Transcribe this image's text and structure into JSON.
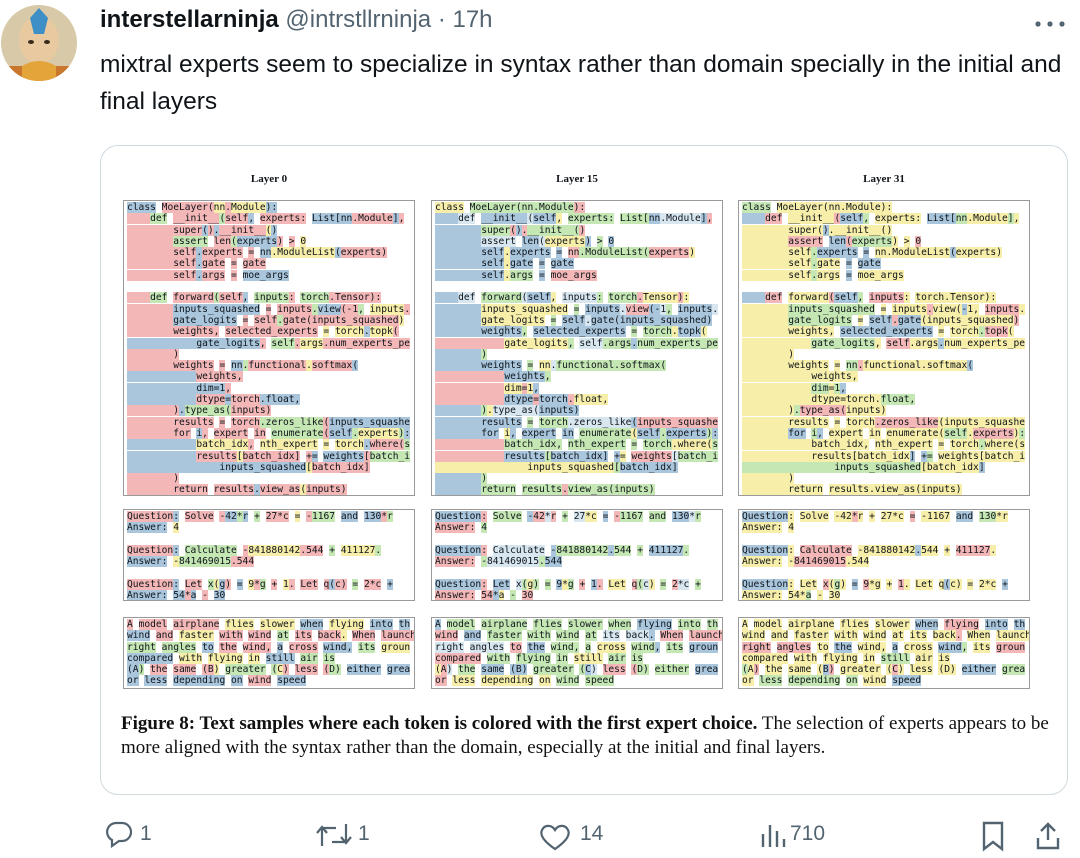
{
  "author": {
    "name": "interstellarninja",
    "handle": "@intrstllrninja",
    "separator": "·",
    "time": "17h"
  },
  "tweet": {
    "text": "mixtral experts seem to specialize in syntax rather than domain specially in the initial and final layers"
  },
  "figure": {
    "panels": [
      {
        "title": "Layer 0"
      },
      {
        "title": "Layer 15"
      },
      {
        "title": "Layer 31"
      }
    ],
    "code_blocks": [
      [
        "class MoeLayer(nn.Module):",
        "    def __init__(self, experts: List[nn.Module],",
        "        super().__init__()",
        "        assert len(experts) > 0",
        "        self.experts = nn.ModuleList(experts)",
        "        self.gate = gate",
        "        self.args = moe_args"
      ],
      [
        "    def forward(self, inputs: torch.Tensor):",
        "        inputs_squashed = inputs.view(-1, inputs.",
        "        gate_logits = self.gate(inputs_squashed)",
        "        weights, selected_experts = torch.topk(",
        "            gate_logits, self.args.num_experts_pe",
        "        )",
        "        weights = nn.functional.softmax(",
        "            weights,",
        "            dim=1,",
        "            dtype=torch.float,",
        "        ).type_as(inputs)",
        "        results = torch.zeros_like(inputs_squashe",
        "        for i, expert in enumerate(self.experts):",
        "            batch_idx, nth_expert = torch.where(s",
        "            results[batch_idx] += weights[batch_i",
        "                inputs_squashed[batch_idx]",
        "        )",
        "        return results.view_as(inputs)"
      ]
    ],
    "questions": [
      [
        "Question: Solve -42*r + 27*c = -1167 and 130*r",
        "Answer: 4"
      ],
      [
        "Question: Calculate -841880142.544 + 411127.",
        "Answer: -841469015.544"
      ],
      [
        "Question: Let x(g) = 9*g + 1. Let q(c) = 2*c +",
        "Answer: 54*a - 30"
      ]
    ],
    "passage": [
      "A model airplane flies slower when flying into th",
      "wind and faster with wind at its back. When launch",
      "right angles to the wind, a cross wind, its groun",
      "compared with flying in still air is",
      "(A) the same (B) greater (C) less (D) either grea",
      "or less depending on wind speed"
    ],
    "caption": {
      "bold": "Figure 8: Text samples where each token is colored with the first expert choice.",
      "text": "The selection of experts appears to be more aligned with the syntax rather than the domain, especially at the initial and final layers."
    }
  },
  "actions": {
    "replies": 1,
    "reposts": 1,
    "likes": 14,
    "views": 710
  }
}
